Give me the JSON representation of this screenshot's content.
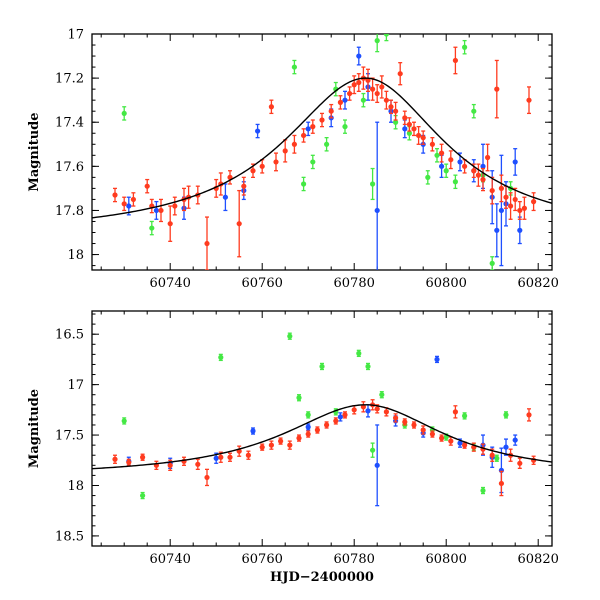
{
  "chart_data": [
    {
      "type": "scatter",
      "ylabel": "Magnitude",
      "xlabel": "",
      "xlim": [
        60723,
        60823
      ],
      "ylim": [
        18.07,
        17.0
      ],
      "y_inverted": true,
      "x_ticks": [
        60740,
        60760,
        60780,
        60800,
        60820
      ],
      "y_ticks": [
        17,
        17.2,
        17.4,
        17.6,
        17.8,
        18
      ],
      "tick_labels_x": [
        "60740",
        "60760",
        "60780",
        "60800",
        "60820"
      ],
      "tick_labels_y": [
        "17",
        "17.2",
        "17.4",
        "17.6",
        "17.8",
        "18"
      ],
      "series": [
        {
          "color": "#ff3b1f",
          "points": [
            [
              60728,
              17.73,
              0.03
            ],
            [
              60730,
              17.77,
              0.03
            ],
            [
              60732,
              17.75,
              0.03
            ],
            [
              60735,
              17.69,
              0.03
            ],
            [
              60736,
              17.78,
              0.03
            ],
            [
              60738,
              17.8,
              0.05
            ],
            [
              60740,
              17.86,
              0.08
            ],
            [
              60741,
              17.78,
              0.04
            ],
            [
              60743,
              17.75,
              0.05
            ],
            [
              60744,
              17.74,
              0.05
            ],
            [
              60746,
              17.73,
              0.04
            ],
            [
              60748,
              17.95,
              0.12
            ],
            [
              60750,
              17.7,
              0.04
            ],
            [
              60751,
              17.68,
              0.05
            ],
            [
              60753,
              17.65,
              0.03
            ],
            [
              60755,
              17.86,
              0.15
            ],
            [
              60756,
              17.69,
              0.04
            ],
            [
              60758,
              17.62,
              0.03
            ],
            [
              60760,
              17.6,
              0.03
            ],
            [
              60762,
              17.33,
              0.03
            ],
            [
              60763,
              17.58,
              0.04
            ],
            [
              60765,
              17.53,
              0.05
            ],
            [
              60767,
              17.5,
              0.04
            ],
            [
              60769,
              17.46,
              0.03
            ],
            [
              60771,
              17.42,
              0.03
            ],
            [
              60773,
              17.39,
              0.03
            ],
            [
              60775,
              17.35,
              0.03
            ],
            [
              60777,
              17.31,
              0.03
            ],
            [
              60779,
              17.27,
              0.03
            ],
            [
              60780,
              17.23,
              0.04
            ],
            [
              60781,
              17.22,
              0.04
            ],
            [
              60782,
              17.2,
              0.05
            ],
            [
              60783,
              17.21,
              0.05
            ],
            [
              60784,
              17.25,
              0.05
            ],
            [
              60785,
              17.27,
              0.04
            ],
            [
              60786,
              17.24,
              0.05
            ],
            [
              60787,
              17.3,
              0.04
            ],
            [
              60788,
              17.33,
              0.03
            ],
            [
              60789,
              17.35,
              0.04
            ],
            [
              60790,
              17.18,
              0.05
            ],
            [
              60791,
              17.38,
              0.03
            ],
            [
              60792,
              17.41,
              0.03
            ],
            [
              60793,
              17.43,
              0.03
            ],
            [
              60794,
              17.46,
              0.04
            ],
            [
              60795,
              17.47,
              0.03
            ],
            [
              60797,
              17.5,
              0.03
            ],
            [
              60799,
              17.54,
              0.04
            ],
            [
              60801,
              17.57,
              0.04
            ],
            [
              60802,
              17.12,
              0.06
            ],
            [
              60804,
              17.6,
              0.03
            ],
            [
              60806,
              17.62,
              0.03
            ],
            [
              60807,
              17.64,
              0.05
            ],
            [
              60808,
              17.66,
              0.05
            ],
            [
              60809,
              17.56,
              0.06
            ],
            [
              60810,
              17.71,
              0.06
            ],
            [
              60811,
              17.25,
              0.13
            ],
            [
              60812,
              17.7,
              0.06
            ],
            [
              60813,
              17.74,
              0.05
            ],
            [
              60814,
              17.78,
              0.06
            ],
            [
              60815,
              17.75,
              0.05
            ],
            [
              60816,
              17.8,
              0.04
            ],
            [
              60817,
              17.79,
              0.05
            ],
            [
              60818,
              17.3,
              0.06
            ],
            [
              60819,
              17.76,
              0.04
            ]
          ]
        },
        {
          "color": "#1e4fff",
          "points": [
            [
              60731,
              17.78,
              0.04
            ],
            [
              60737,
              17.8,
              0.04
            ],
            [
              60743,
              17.79,
              0.05
            ],
            [
              60752,
              17.74,
              0.06
            ],
            [
              60756,
              17.71,
              0.04
            ],
            [
              60759,
              17.44,
              0.03
            ],
            [
              60770,
              17.43,
              0.03
            ],
            [
              60775,
              17.38,
              0.04
            ],
            [
              60778,
              17.3,
              0.04
            ],
            [
              60781,
              17.1,
              0.04
            ],
            [
              60783,
              17.24,
              0.06
            ],
            [
              60785,
              17.8,
              0.4
            ],
            [
              60788,
              17.35,
              0.05
            ],
            [
              60791,
              17.43,
              0.04
            ],
            [
              60795,
              17.5,
              0.04
            ],
            [
              60799,
              17.6,
              0.05
            ],
            [
              60803,
              17.58,
              0.04
            ],
            [
              60806,
              17.62,
              0.05
            ],
            [
              60808,
              17.6,
              0.1
            ],
            [
              60810,
              17.74,
              0.12
            ],
            [
              60811,
              17.89,
              0.12
            ],
            [
              60812,
              17.8,
              0.25
            ],
            [
              60813,
              17.77,
              0.1
            ],
            [
              60815,
              17.58,
              0.06
            ],
            [
              60816,
              17.89,
              0.06
            ]
          ]
        },
        {
          "color": "#44e844",
          "points": [
            [
              60730,
              17.36,
              0.03
            ],
            [
              60736,
              17.88,
              0.03
            ],
            [
              60767,
              17.15,
              0.03
            ],
            [
              60769,
              17.68,
              0.03
            ],
            [
              60771,
              17.58,
              0.03
            ],
            [
              60774,
              17.5,
              0.03
            ],
            [
              60776,
              17.25,
              0.03
            ],
            [
              60778,
              17.42,
              0.03
            ],
            [
              60782,
              17.3,
              0.03
            ],
            [
              60784,
              17.68,
              0.07
            ],
            [
              60785,
              17.03,
              0.05
            ],
            [
              60787,
              17.0,
              0.03
            ],
            [
              60789,
              17.4,
              0.03
            ],
            [
              60792,
              17.45,
              0.03
            ],
            [
              60796,
              17.65,
              0.03
            ],
            [
              60798,
              17.55,
              0.03
            ],
            [
              60800,
              17.62,
              0.03
            ],
            [
              60802,
              17.67,
              0.03
            ],
            [
              60804,
              17.06,
              0.03
            ],
            [
              60806,
              17.35,
              0.03
            ],
            [
              60808,
              17.64,
              0.03
            ],
            [
              60810,
              18.04,
              0.03
            ],
            [
              60814,
              17.7,
              0.03
            ]
          ]
        }
      ],
      "model_curve": {
        "color": "#000000"
      }
    },
    {
      "type": "scatter",
      "ylabel": "Magnitude",
      "xlabel": "HJD−2400000",
      "xlim": [
        60723,
        60823
      ],
      "ylim": [
        18.6,
        16.27
      ],
      "y_inverted": true,
      "x_ticks": [
        60740,
        60760,
        60780,
        60800,
        60820
      ],
      "y_ticks": [
        16.5,
        17,
        17.5,
        18,
        18.5
      ],
      "tick_labels_x": [
        "60740",
        "60760",
        "60780",
        "60800",
        "60820"
      ],
      "tick_labels_y": [
        "16.5",
        "17",
        "17.5",
        "18",
        "18.5"
      ],
      "series": [
        {
          "color": "#ff3b1f",
          "points": [
            [
              60728,
              17.74,
              0.04
            ],
            [
              60731,
              17.77,
              0.03
            ],
            [
              60734,
              17.72,
              0.03
            ],
            [
              60737,
              17.8,
              0.04
            ],
            [
              60740,
              17.8,
              0.05
            ],
            [
              60743,
              17.76,
              0.04
            ],
            [
              60746,
              17.79,
              0.05
            ],
            [
              60748,
              17.92,
              0.08
            ],
            [
              60751,
              17.72,
              0.05
            ],
            [
              60753,
              17.72,
              0.04
            ],
            [
              60755,
              17.66,
              0.05
            ],
            [
              60757,
              17.7,
              0.04
            ],
            [
              60760,
              17.62,
              0.03
            ],
            [
              60762,
              17.6,
              0.04
            ],
            [
              60764,
              17.56,
              0.03
            ],
            [
              60766,
              17.6,
              0.04
            ],
            [
              60768,
              17.53,
              0.03
            ],
            [
              60770,
              17.49,
              0.03
            ],
            [
              60772,
              17.45,
              0.03
            ],
            [
              60774,
              17.4,
              0.03
            ],
            [
              60776,
              17.36,
              0.03
            ],
            [
              60778,
              17.3,
              0.03
            ],
            [
              60780,
              17.25,
              0.04
            ],
            [
              60782,
              17.22,
              0.05
            ],
            [
              60784,
              17.2,
              0.05
            ],
            [
              60785,
              17.24,
              0.04
            ],
            [
              60787,
              17.27,
              0.04
            ],
            [
              60789,
              17.33,
              0.04
            ],
            [
              60791,
              17.37,
              0.03
            ],
            [
              60793,
              17.4,
              0.03
            ],
            [
              60795,
              17.45,
              0.04
            ],
            [
              60797,
              17.49,
              0.03
            ],
            [
              60799,
              17.53,
              0.03
            ],
            [
              60801,
              17.56,
              0.04
            ],
            [
              60802,
              17.27,
              0.06
            ],
            [
              60804,
              17.6,
              0.03
            ],
            [
              60806,
              17.62,
              0.04
            ],
            [
              60808,
              17.64,
              0.05
            ],
            [
              60810,
              17.7,
              0.06
            ],
            [
              60812,
              17.98,
              0.12
            ],
            [
              60814,
              17.7,
              0.06
            ],
            [
              60816,
              17.78,
              0.05
            ],
            [
              60818,
              17.3,
              0.06
            ],
            [
              60819,
              17.75,
              0.04
            ]
          ]
        },
        {
          "color": "#1e4fff",
          "points": [
            [
              60731,
              17.76,
              0.04
            ],
            [
              60740,
              17.78,
              0.05
            ],
            [
              60750,
              17.73,
              0.05
            ],
            [
              60758,
              17.46,
              0.03
            ],
            [
              60770,
              17.42,
              0.03
            ],
            [
              60777,
              17.32,
              0.04
            ],
            [
              60783,
              17.26,
              0.06
            ],
            [
              60785,
              17.8,
              0.4
            ],
            [
              60789,
              17.36,
              0.05
            ],
            [
              60795,
              17.48,
              0.04
            ],
            [
              60798,
              16.75,
              0.03
            ],
            [
              60803,
              17.58,
              0.04
            ],
            [
              60808,
              17.6,
              0.1
            ],
            [
              60810,
              17.72,
              0.1
            ],
            [
              60812,
              17.85,
              0.22
            ],
            [
              60813,
              17.62,
              0.08
            ],
            [
              60815,
              17.55,
              0.05
            ]
          ]
        },
        {
          "color": "#44e844",
          "points": [
            [
              60730,
              17.36,
              0.03
            ],
            [
              60734,
              18.1,
              0.03
            ],
            [
              60751,
              16.73,
              0.03
            ],
            [
              60766,
              16.52,
              0.03
            ],
            [
              60768,
              17.13,
              0.03
            ],
            [
              60770,
              17.3,
              0.03
            ],
            [
              60773,
              16.82,
              0.03
            ],
            [
              60776,
              17.27,
              0.03
            ],
            [
              60781,
              16.69,
              0.03
            ],
            [
              60783,
              16.82,
              0.03
            ],
            [
              60784,
              17.65,
              0.07
            ],
            [
              60786,
              17.1,
              0.03
            ],
            [
              60791,
              17.4,
              0.03
            ],
            [
              60797,
              17.45,
              0.03
            ],
            [
              60800,
              17.52,
              0.03
            ],
            [
              60804,
              17.31,
              0.03
            ],
            [
              60806,
              17.62,
              0.03
            ],
            [
              60808,
              18.05,
              0.03
            ],
            [
              60811,
              17.73,
              0.03
            ],
            [
              60813,
              17.3,
              0.03
            ]
          ]
        }
      ],
      "model_curve": {
        "color": "#000000"
      }
    }
  ]
}
